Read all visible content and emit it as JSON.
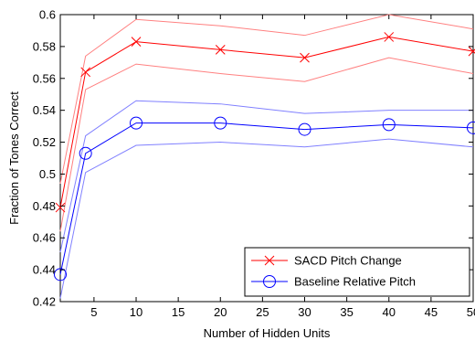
{
  "chart_data": {
    "type": "line",
    "xlabel": "Number of Hidden Units",
    "ylabel": "Fraction of Tones Correct",
    "xlim": [
      1,
      50
    ],
    "ylim": [
      0.42,
      0.6
    ],
    "xticks": [
      5,
      10,
      15,
      20,
      25,
      30,
      35,
      40,
      45,
      50
    ],
    "yticks": [
      0.42,
      0.44,
      0.46,
      0.48,
      0.5,
      0.52,
      0.54,
      0.56,
      0.58,
      0.6
    ],
    "xtick_labels": [
      "5",
      "10",
      "15",
      "20",
      "25",
      "30",
      "35",
      "40",
      "45",
      "50"
    ],
    "ytick_labels": [
      "0.42",
      "0.44",
      "0.46",
      "0.48",
      "0.5",
      "0.52",
      "0.54",
      "0.56",
      "0.58",
      "0.6"
    ],
    "grid": false,
    "legend_position": "bottom-right",
    "x": [
      1,
      4,
      10,
      20,
      30,
      40,
      50
    ],
    "series": [
      {
        "name": "SACD Pitch Change",
        "color": "#ff0000",
        "band_color": "#ff8080",
        "marker": "x",
        "values": [
          0.479,
          0.564,
          0.583,
          0.578,
          0.573,
          0.586,
          0.577
        ],
        "upper": [
          0.494,
          0.574,
          0.597,
          0.593,
          0.587,
          0.6,
          0.591
        ],
        "lower": [
          0.464,
          0.553,
          0.569,
          0.563,
          0.558,
          0.573,
          0.563
        ]
      },
      {
        "name": "Baseline Relative Pitch",
        "color": "#0000ff",
        "band_color": "#8080ff",
        "marker": "o",
        "values": [
          0.437,
          0.513,
          0.532,
          0.532,
          0.528,
          0.531,
          0.529
        ],
        "upper": [
          0.451,
          0.524,
          0.546,
          0.544,
          0.538,
          0.54,
          0.54
        ],
        "lower": [
          0.422,
          0.501,
          0.518,
          0.52,
          0.517,
          0.522,
          0.517
        ]
      }
    ]
  }
}
